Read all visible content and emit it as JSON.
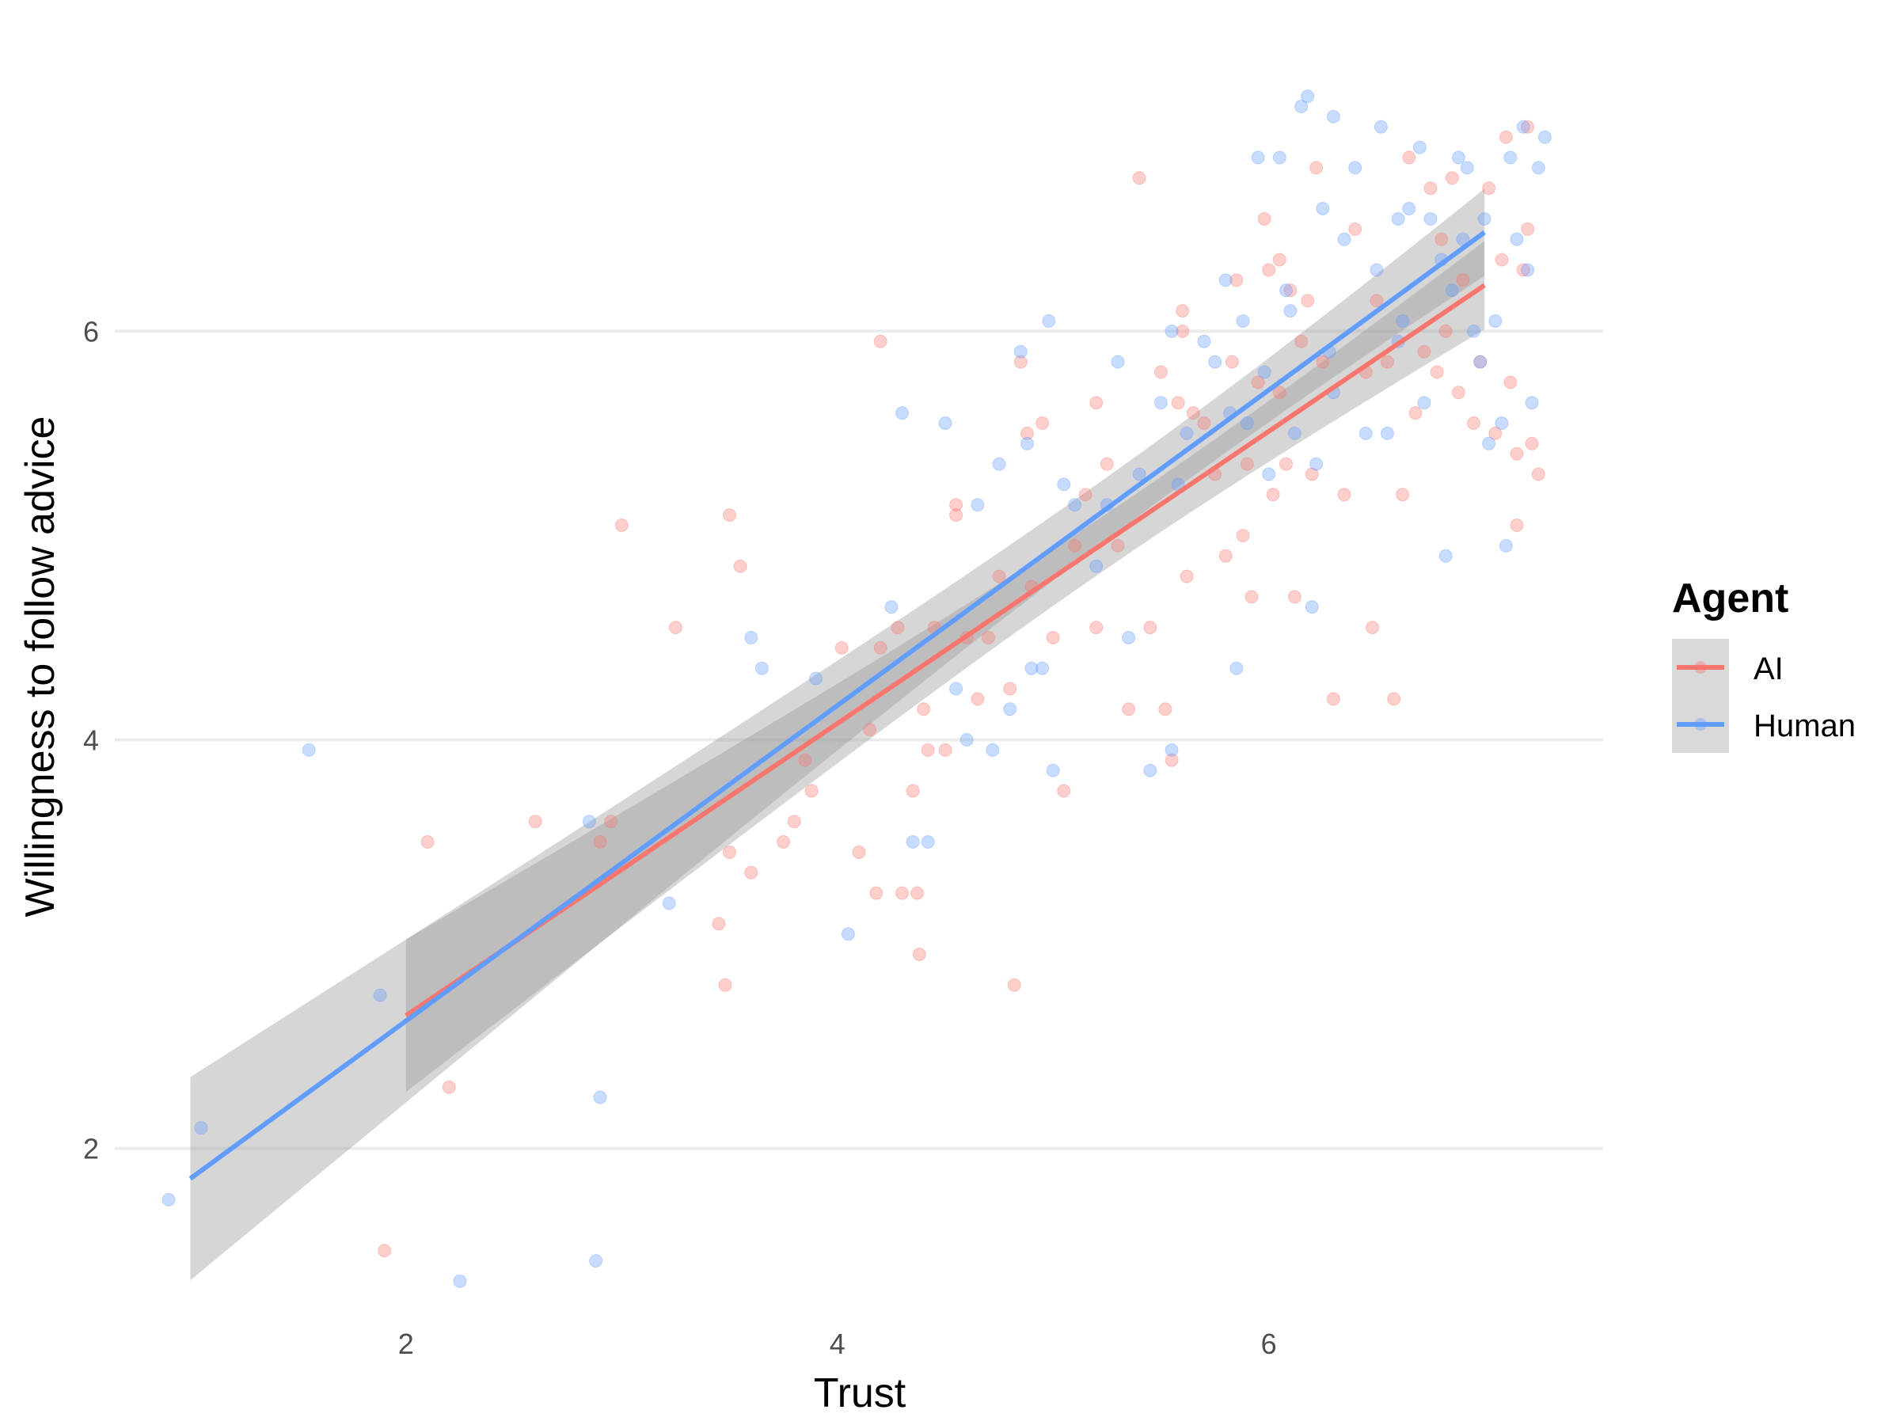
{
  "chart_data": {
    "type": "scatter",
    "xlabel": "Trust",
    "ylabel": "Willingness to follow advice",
    "xlim": [
      0.65,
      7.55
    ],
    "ylim": [
      1.15,
      7.35
    ],
    "x_ticks": [
      2,
      4,
      6
    ],
    "y_ticks": [
      2,
      4,
      6
    ],
    "grid": "horizontal major",
    "legend": {
      "title": "Agent",
      "placement": "right"
    },
    "colors": {
      "AI": "#f8766d",
      "Human": "#619cff",
      "band": "#999999"
    },
    "series": [
      {
        "name": "AI",
        "fit": {
          "x_range": [
            2.0,
            7.0
          ],
          "intercept": 1.22,
          "slope": 0.715
        },
        "points": [
          [
            1.9,
            1.5
          ],
          [
            2.1,
            3.5
          ],
          [
            2.2,
            2.3
          ],
          [
            2.6,
            3.6
          ],
          [
            2.9,
            3.5
          ],
          [
            2.95,
            3.6
          ],
          [
            3.0,
            5.05
          ],
          [
            3.25,
            4.55
          ],
          [
            3.45,
            3.1
          ],
          [
            3.48,
            2.8
          ],
          [
            3.5,
            3.45
          ],
          [
            3.5,
            5.1
          ],
          [
            3.55,
            4.85
          ],
          [
            3.6,
            3.35
          ],
          [
            3.75,
            3.5
          ],
          [
            3.8,
            3.6
          ],
          [
            3.85,
            3.9
          ],
          [
            3.88,
            3.75
          ],
          [
            4.02,
            4.45
          ],
          [
            4.1,
            3.45
          ],
          [
            4.15,
            4.05
          ],
          [
            4.18,
            3.25
          ],
          [
            4.2,
            4.45
          ],
          [
            4.2,
            5.95
          ],
          [
            4.28,
            4.55
          ],
          [
            4.3,
            3.25
          ],
          [
            4.35,
            3.75
          ],
          [
            4.37,
            3.25
          ],
          [
            4.38,
            2.95
          ],
          [
            4.4,
            4.15
          ],
          [
            4.42,
            3.95
          ],
          [
            4.45,
            4.55
          ],
          [
            4.5,
            3.95
          ],
          [
            4.55,
            5.1
          ],
          [
            4.6,
            4.5
          ],
          [
            4.65,
            4.2
          ],
          [
            4.7,
            4.5
          ],
          [
            4.75,
            4.8
          ],
          [
            4.8,
            4.25
          ],
          [
            4.82,
            2.8
          ],
          [
            4.85,
            5.85
          ],
          [
            4.88,
            5.5
          ],
          [
            4.9,
            4.75
          ],
          [
            4.95,
            5.55
          ],
          [
            5.0,
            4.5
          ],
          [
            5.05,
            3.75
          ],
          [
            5.1,
            4.95
          ],
          [
            5.15,
            5.2
          ],
          [
            5.2,
            4.55
          ],
          [
            5.25,
            5.35
          ],
          [
            5.3,
            4.95
          ],
          [
            5.35,
            4.15
          ],
          [
            5.4,
            6.75
          ],
          [
            5.45,
            4.55
          ],
          [
            5.5,
            5.8
          ],
          [
            5.52,
            4.15
          ],
          [
            5.55,
            3.9
          ],
          [
            5.58,
            5.65
          ],
          [
            5.6,
            6.0
          ],
          [
            5.62,
            4.8
          ],
          [
            5.65,
            5.6
          ],
          [
            5.7,
            5.55
          ],
          [
            5.75,
            5.3
          ],
          [
            5.8,
            4.9
          ],
          [
            5.83,
            5.85
          ],
          [
            5.85,
            6.25
          ],
          [
            5.88,
            5.0
          ],
          [
            5.9,
            5.35
          ],
          [
            5.92,
            4.7
          ],
          [
            5.95,
            5.75
          ],
          [
            5.98,
            6.55
          ],
          [
            6.0,
            6.3
          ],
          [
            6.02,
            5.2
          ],
          [
            6.05,
            5.7
          ],
          [
            6.08,
            5.35
          ],
          [
            6.1,
            6.2
          ],
          [
            6.12,
            4.7
          ],
          [
            6.15,
            5.95
          ],
          [
            6.18,
            6.15
          ],
          [
            6.2,
            5.3
          ],
          [
            6.22,
            6.8
          ],
          [
            6.25,
            5.85
          ],
          [
            6.3,
            4.2
          ],
          [
            6.35,
            5.2
          ],
          [
            6.4,
            6.5
          ],
          [
            6.45,
            5.8
          ],
          [
            6.48,
            4.55
          ],
          [
            6.5,
            6.15
          ],
          [
            6.55,
            5.85
          ],
          [
            6.58,
            4.2
          ],
          [
            6.62,
            5.2
          ],
          [
            6.65,
            6.85
          ],
          [
            6.68,
            5.6
          ],
          [
            6.72,
            5.9
          ],
          [
            6.75,
            6.7
          ],
          [
            6.78,
            5.8
          ],
          [
            6.8,
            6.45
          ],
          [
            6.82,
            6.0
          ],
          [
            6.85,
            6.75
          ],
          [
            6.88,
            5.7
          ],
          [
            6.9,
            6.25
          ],
          [
            6.95,
            5.55
          ],
          [
            6.98,
            5.85
          ],
          [
            7.02,
            6.7
          ],
          [
            7.05,
            5.5
          ],
          [
            7.08,
            6.35
          ],
          [
            7.1,
            6.95
          ],
          [
            7.12,
            5.75
          ],
          [
            7.15,
            5.05
          ],
          [
            7.18,
            6.3
          ],
          [
            7.2,
            6.5
          ],
          [
            7.22,
            5.45
          ],
          [
            7.25,
            5.3
          ],
          [
            7.2,
            7.0
          ],
          [
            7.15,
            5.4
          ],
          [
            4.55,
            5.15
          ],
          [
            5.2,
            5.65
          ],
          [
            5.6,
            6.1
          ],
          [
            6.05,
            6.35
          ]
        ]
      },
      {
        "name": "Human",
        "fit": {
          "x_range": [
            1.0,
            7.0
          ],
          "intercept": 1.08,
          "slope": 0.772
        },
        "points": [
          [
            0.9,
            1.75
          ],
          [
            1.05,
            2.1
          ],
          [
            1.55,
            3.95
          ],
          [
            1.88,
            2.75
          ],
          [
            2.25,
            1.35
          ],
          [
            2.85,
            3.6
          ],
          [
            2.88,
            1.45
          ],
          [
            2.9,
            2.25
          ],
          [
            3.22,
            3.2
          ],
          [
            3.6,
            4.5
          ],
          [
            3.65,
            4.35
          ],
          [
            3.9,
            4.3
          ],
          [
            4.05,
            3.05
          ],
          [
            4.25,
            4.65
          ],
          [
            4.3,
            5.6
          ],
          [
            4.35,
            3.5
          ],
          [
            4.42,
            3.5
          ],
          [
            4.5,
            5.55
          ],
          [
            4.55,
            4.25
          ],
          [
            4.6,
            4.0
          ],
          [
            4.65,
            5.15
          ],
          [
            4.72,
            3.95
          ],
          [
            4.75,
            5.35
          ],
          [
            4.8,
            4.15
          ],
          [
            4.85,
            5.9
          ],
          [
            4.88,
            5.45
          ],
          [
            4.9,
            4.35
          ],
          [
            4.95,
            4.35
          ],
          [
            4.98,
            6.05
          ],
          [
            5.0,
            3.85
          ],
          [
            5.05,
            5.25
          ],
          [
            5.1,
            5.15
          ],
          [
            5.2,
            4.85
          ],
          [
            5.25,
            5.15
          ],
          [
            5.3,
            5.85
          ],
          [
            5.35,
            4.5
          ],
          [
            5.4,
            5.3
          ],
          [
            5.45,
            3.85
          ],
          [
            5.5,
            5.65
          ],
          [
            5.55,
            3.95
          ],
          [
            5.58,
            5.25
          ],
          [
            5.62,
            5.5
          ],
          [
            5.7,
            5.95
          ],
          [
            5.75,
            5.85
          ],
          [
            5.8,
            6.25
          ],
          [
            5.82,
            5.6
          ],
          [
            5.85,
            4.35
          ],
          [
            5.88,
            6.05
          ],
          [
            5.9,
            5.55
          ],
          [
            5.95,
            6.85
          ],
          [
            5.98,
            5.8
          ],
          [
            6.0,
            5.3
          ],
          [
            6.05,
            6.85
          ],
          [
            6.08,
            6.2
          ],
          [
            6.12,
            5.5
          ],
          [
            6.15,
            7.1
          ],
          [
            6.18,
            7.15
          ],
          [
            6.2,
            4.65
          ],
          [
            6.22,
            5.35
          ],
          [
            6.25,
            6.6
          ],
          [
            6.28,
            5.9
          ],
          [
            6.3,
            7.05
          ],
          [
            6.35,
            6.45
          ],
          [
            6.4,
            6.8
          ],
          [
            6.45,
            5.5
          ],
          [
            6.5,
            6.3
          ],
          [
            6.52,
            7.0
          ],
          [
            6.55,
            5.5
          ],
          [
            6.6,
            6.55
          ],
          [
            6.62,
            6.05
          ],
          [
            6.65,
            6.6
          ],
          [
            6.7,
            6.9
          ],
          [
            6.72,
            5.65
          ],
          [
            6.75,
            6.55
          ],
          [
            6.8,
            6.35
          ],
          [
            6.82,
            4.9
          ],
          [
            6.85,
            6.2
          ],
          [
            6.88,
            6.85
          ],
          [
            6.9,
            6.45
          ],
          [
            6.92,
            6.8
          ],
          [
            6.95,
            6.0
          ],
          [
            6.98,
            5.85
          ],
          [
            7.0,
            6.55
          ],
          [
            7.02,
            5.45
          ],
          [
            7.05,
            6.05
          ],
          [
            7.08,
            5.55
          ],
          [
            7.1,
            4.95
          ],
          [
            7.12,
            6.85
          ],
          [
            7.15,
            6.45
          ],
          [
            7.18,
            7.0
          ],
          [
            7.2,
            6.3
          ],
          [
            7.22,
            5.65
          ],
          [
            7.25,
            6.8
          ],
          [
            7.28,
            6.95
          ],
          [
            5.55,
            6.0
          ],
          [
            6.1,
            6.1
          ],
          [
            6.3,
            5.7
          ],
          [
            6.6,
            5.95
          ]
        ]
      }
    ]
  }
}
